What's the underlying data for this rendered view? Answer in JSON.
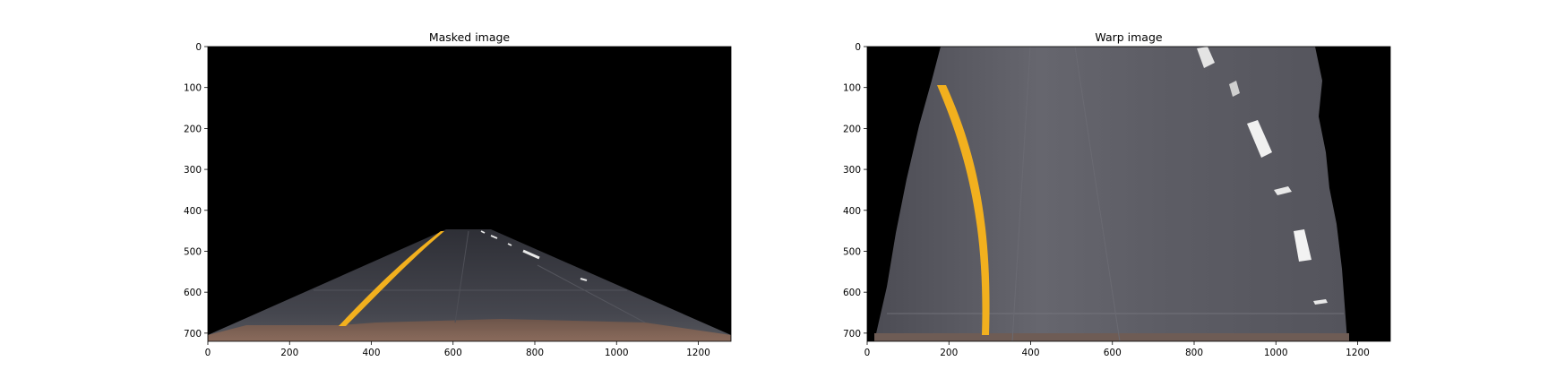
{
  "chart_data": [
    {
      "type": "image",
      "title": "Masked image",
      "xlim": [
        0,
        1280
      ],
      "ylim": [
        720,
        0
      ],
      "xticks": [
        0,
        200,
        400,
        600,
        800,
        1000,
        1200
      ],
      "yticks": [
        0,
        100,
        200,
        300,
        400,
        500,
        600,
        700
      ],
      "content": "road-scene-with-trapezoid-mask",
      "colors": {
        "background": "#000000",
        "asphalt": "#3d3e45",
        "yellow_line": "#f2b01e",
        "white_line": "#e8e8e8",
        "dirt": "#7a6052"
      }
    },
    {
      "type": "image",
      "title": "Warp image",
      "xlim": [
        0,
        1280
      ],
      "ylim": [
        720,
        0
      ],
      "xticks": [
        0,
        200,
        400,
        600,
        800,
        1000,
        1200
      ],
      "yticks": [
        0,
        100,
        200,
        300,
        400,
        500,
        600,
        700
      ],
      "content": "birds-eye-warped-road",
      "colors": {
        "background": "#000000",
        "asphalt": "#5e5e66",
        "yellow_line": "#f2b01e",
        "white_line": "#f0f0f0"
      }
    }
  ]
}
